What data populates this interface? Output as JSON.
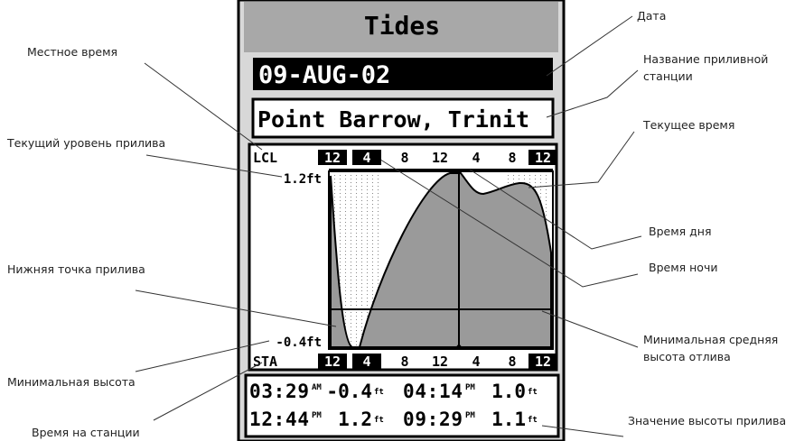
{
  "screen": {
    "title": "Tides",
    "date": "09-AUG-02",
    "station": "Point Barrow, Trinit",
    "local_label": "LCL",
    "station_label": "STA",
    "hours_local": [
      "12",
      "4",
      "8",
      "12",
      "4",
      "8",
      "12"
    ],
    "hours_station": [
      "12",
      "4",
      "8",
      "12",
      "4",
      "8",
      "12"
    ],
    "max_level": "1.2ft",
    "min_level": "-0.4ft",
    "table": [
      [
        "03:29",
        "AM",
        "-0.4",
        "ft",
        "04:14",
        "PM",
        "1.0",
        "ft"
      ],
      [
        "12:44",
        "PM",
        "1.2",
        "ft",
        "09:29",
        "PM",
        "1.1",
        "ft"
      ]
    ]
  },
  "callouts": {
    "local_time": [
      "Местное время"
    ],
    "current_level": [
      "Текущий уровень прилива"
    ],
    "low_point": [
      "Нижняя точка прилива"
    ],
    "min_height": [
      "Минимальная высота"
    ],
    "station_time": [
      "Время на станции"
    ],
    "date": [
      "Дата"
    ],
    "station_name": [
      "Название приливной",
      "станции"
    ],
    "current_time": [
      "Текущее время"
    ],
    "day_time": [
      "Время дня"
    ],
    "night_time": [
      "Время ночи"
    ],
    "mean_low": [
      "Минимальная средняя",
      "высота отлива"
    ],
    "tide_value": [
      "Значение высоты прилива"
    ]
  }
}
